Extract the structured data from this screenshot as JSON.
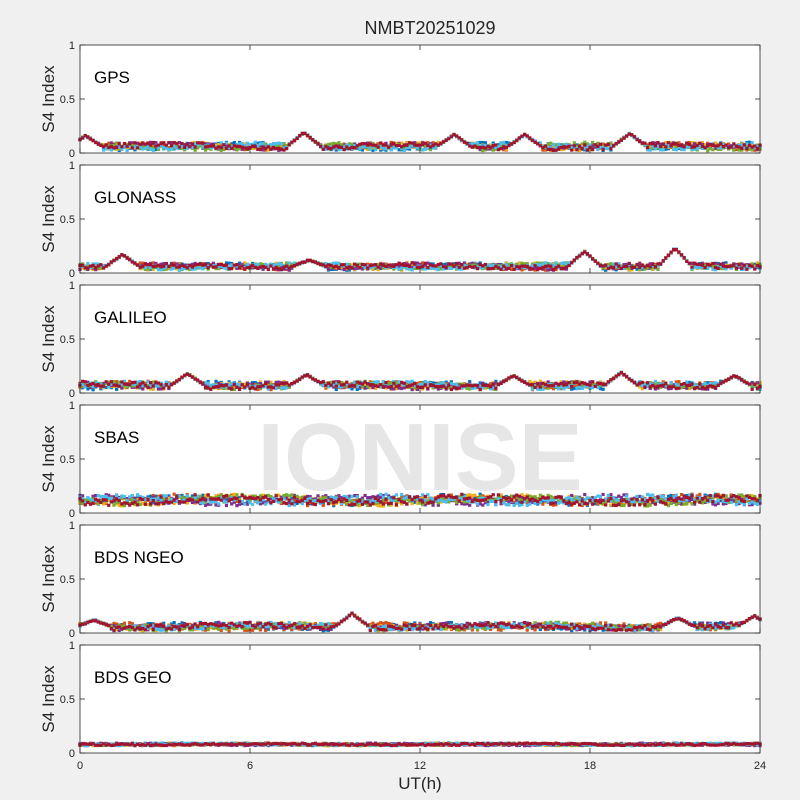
{
  "title": "NMBT20251029",
  "xlabel": "UT(h)",
  "ylabel": "S4 Index",
  "watermark": "IONISE",
  "colors": {
    "figure_background": "#f0f0f0",
    "axes_background": "#ffffff",
    "series": [
      "#0072BD",
      "#D95319",
      "#EDB120",
      "#7E2F8E",
      "#77AC30",
      "#4DBEEE",
      "#A2142F"
    ]
  },
  "chart_data": [
    {
      "type": "scatter",
      "panel_label": "GPS",
      "xlim": [
        0,
        24
      ],
      "ylim": [
        0,
        1
      ],
      "xticks": [
        0,
        6,
        12,
        18,
        24
      ],
      "yticks": [
        0,
        0.5,
        1
      ],
      "ytick_labels": [
        "0",
        "0.5",
        "1"
      ],
      "baseline": 0.06,
      "noise": 0.025,
      "bumps": [
        {
          "x": 0.2,
          "y": 0.16
        },
        {
          "x": 7.9,
          "y": 0.19
        },
        {
          "x": 13.2,
          "y": 0.17
        },
        {
          "x": 15.7,
          "y": 0.17
        },
        {
          "x": 19.4,
          "y": 0.18
        }
      ]
    },
    {
      "type": "scatter",
      "panel_label": "GLONASS",
      "xlim": [
        0,
        24
      ],
      "ylim": [
        0,
        1
      ],
      "xticks": [
        0,
        6,
        12,
        18,
        24
      ],
      "yticks": [
        0,
        0.5,
        1
      ],
      "ytick_labels": [
        "0",
        "0.5",
        "1"
      ],
      "baseline": 0.06,
      "noise": 0.022,
      "bumps": [
        {
          "x": 1.5,
          "y": 0.17
        },
        {
          "x": 8.1,
          "y": 0.12
        },
        {
          "x": 17.8,
          "y": 0.2
        },
        {
          "x": 21.0,
          "y": 0.23
        }
      ]
    },
    {
      "type": "scatter",
      "panel_label": "GALILEO",
      "xlim": [
        0,
        24
      ],
      "ylim": [
        0,
        1
      ],
      "xticks": [
        0,
        6,
        12,
        18,
        24
      ],
      "yticks": [
        0,
        0.5,
        1
      ],
      "ytick_labels": [
        "0",
        "0.5",
        "1"
      ],
      "baseline": 0.07,
      "noise": 0.025,
      "bumps": [
        {
          "x": 3.8,
          "y": 0.18
        },
        {
          "x": 8.0,
          "y": 0.17
        },
        {
          "x": 15.3,
          "y": 0.16
        },
        {
          "x": 19.1,
          "y": 0.19
        },
        {
          "x": 23.1,
          "y": 0.16
        }
      ]
    },
    {
      "type": "scatter",
      "panel_label": "SBAS",
      "xlim": [
        0,
        24
      ],
      "ylim": [
        0,
        1
      ],
      "xticks": [
        0,
        6,
        12,
        18,
        24
      ],
      "yticks": [
        0,
        0.5,
        1
      ],
      "ytick_labels": [
        "0",
        "0.5",
        "1"
      ],
      "baseline": 0.12,
      "noise": 0.035,
      "bumps": []
    },
    {
      "type": "scatter",
      "panel_label": "BDS NGEO",
      "xlim": [
        0,
        24
      ],
      "ylim": [
        0,
        1
      ],
      "xticks": [
        0,
        6,
        12,
        18,
        24
      ],
      "yticks": [
        0,
        0.5,
        1
      ],
      "ytick_labels": [
        "0",
        "0.5",
        "1"
      ],
      "baseline": 0.06,
      "noise": 0.025,
      "bumps": [
        {
          "x": 0.5,
          "y": 0.12
        },
        {
          "x": 9.6,
          "y": 0.18
        },
        {
          "x": 21.1,
          "y": 0.14
        },
        {
          "x": 23.8,
          "y": 0.16
        }
      ]
    },
    {
      "type": "scatter",
      "panel_label": "BDS GEO",
      "xlim": [
        0,
        24
      ],
      "ylim": [
        0,
        1
      ],
      "xticks": [
        0,
        6,
        12,
        18,
        24
      ],
      "xtick_labels": [
        "0",
        "6",
        "12",
        "18",
        "24"
      ],
      "yticks": [
        0,
        0.5,
        1
      ],
      "ytick_labels": [
        "0",
        "0.5",
        "1"
      ],
      "baseline": 0.08,
      "noise": 0.008,
      "bumps": []
    }
  ]
}
